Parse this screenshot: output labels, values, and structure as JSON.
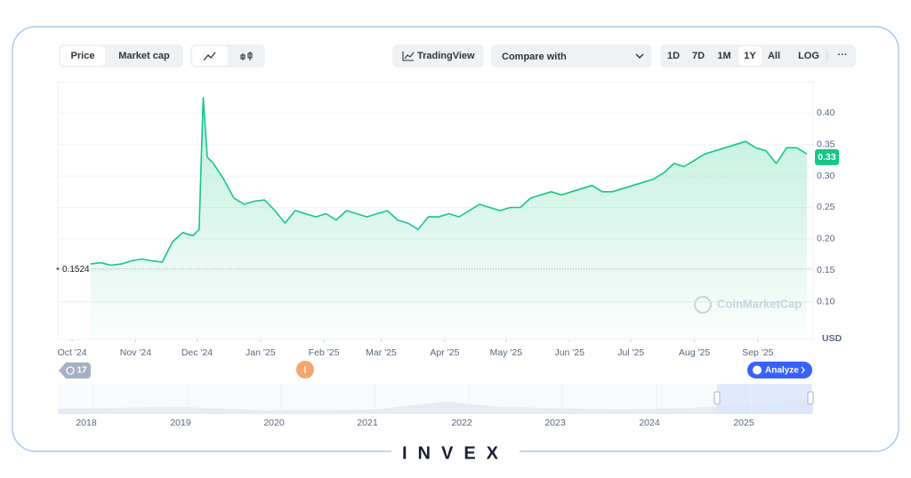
{
  "toolbar": {
    "price": "Price",
    "market_cap": "Market cap",
    "trading_view": "TradingView",
    "compare": "Compare with",
    "ranges": [
      "1D",
      "7D",
      "1M",
      "1Y",
      "All",
      "LOG"
    ],
    "more": "···"
  },
  "chart_data": {
    "type": "line",
    "color": "#16c784",
    "x": [
      9,
      14,
      19,
      24,
      29,
      34,
      39,
      44,
      49,
      54,
      59,
      62,
      64,
      66,
      69,
      74,
      79,
      84,
      89,
      94,
      99,
      104,
      109,
      114,
      119,
      124,
      129,
      134,
      139,
      144,
      149,
      154,
      159,
      164,
      169,
      174,
      179,
      184,
      189,
      194,
      199,
      204,
      209,
      214,
      219,
      224,
      229,
      234,
      239,
      244,
      249,
      254,
      259,
      264,
      269,
      274,
      279,
      284,
      289,
      294,
      299,
      304,
      309,
      314,
      319,
      324,
      329,
      334,
      339,
      344,
      349,
      354,
      359
    ],
    "values": [
      0.16,
      0.162,
      0.158,
      0.16,
      0.165,
      0.168,
      0.165,
      0.163,
      0.195,
      0.21,
      0.205,
      0.215,
      0.425,
      0.33,
      0.32,
      0.295,
      0.265,
      0.255,
      0.26,
      0.262,
      0.245,
      0.225,
      0.245,
      0.24,
      0.235,
      0.24,
      0.23,
      0.245,
      0.24,
      0.235,
      0.24,
      0.245,
      0.23,
      0.225,
      0.215,
      0.235,
      0.235,
      0.24,
      0.235,
      0.245,
      0.255,
      0.25,
      0.245,
      0.25,
      0.25,
      0.265,
      0.27,
      0.275,
      0.27,
      0.275,
      0.28,
      0.285,
      0.275,
      0.275,
      0.28,
      0.285,
      0.29,
      0.295,
      0.305,
      0.32,
      0.315,
      0.325,
      0.335,
      0.34,
      0.345,
      0.35,
      0.355,
      0.345,
      0.34,
      0.32,
      0.345,
      0.345,
      0.335
    ],
    "xlim": [
      -7,
      362
    ],
    "xticks": [
      {
        "value": 0,
        "label": "Oct '24"
      },
      {
        "value": 31,
        "label": "Nov '24"
      },
      {
        "value": 61,
        "label": "Dec '24"
      },
      {
        "value": 92,
        "label": "Jan '25"
      },
      {
        "value": 123,
        "label": "Feb '25"
      },
      {
        "value": 151,
        "label": "Mar '25"
      },
      {
        "value": 182,
        "label": "Apr '25"
      },
      {
        "value": 212,
        "label": "May '25"
      },
      {
        "value": 243,
        "label": "Jun '25"
      },
      {
        "value": 273,
        "label": "Jul '25"
      },
      {
        "value": 304,
        "label": "Aug '25"
      },
      {
        "value": 335,
        "label": "Sep '25"
      }
    ],
    "ylim": [
      0.04,
      0.45
    ],
    "yticks": [
      {
        "value": 0.1,
        "label": "0.10"
      },
      0.15,
      {
        "value": 0.2,
        "label": "0.20"
      },
      0.25,
      {
        "value": 0.3,
        "label": "0.30"
      },
      0.35,
      {
        "value": 0.4,
        "label": "0.40"
      }
    ],
    "grid": true,
    "current_price": 0.33,
    "start_price": 0.1524,
    "currency": "USD",
    "watermark": "CoinMarketCap"
  },
  "events_badge": "17",
  "analyze": "Analyze",
  "navigator_years": [
    "2018",
    "2019",
    "2020",
    "2021",
    "2022",
    "2023",
    "2024",
    "2025"
  ],
  "logo": "INVEX"
}
